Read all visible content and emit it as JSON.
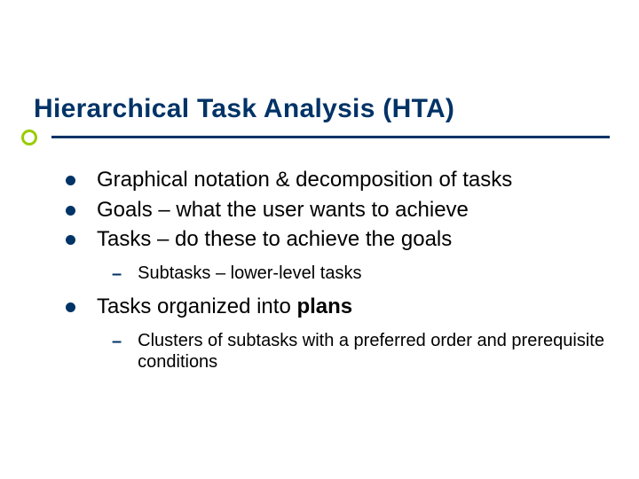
{
  "slide": {
    "title": "Hierarchical Task Analysis (HTA)",
    "title_color": "#003366",
    "title_fontsize": 30,
    "accent_circle_color": "#99cc00",
    "line_color": "#003366",
    "background_color": "#ffffff",
    "bullets": {
      "level1_bullet_color": "#003366",
      "level1_fontsize": 24,
      "level2_dash": "–",
      "level2_dash_color": "#003366",
      "level2_fontsize": 20,
      "items": [
        {
          "text": "Graphical notation & decomposition of tasks"
        },
        {
          "text": "Goals – what the user wants to achieve"
        },
        {
          "text": "Tasks – do these to achieve the goals",
          "children": [
            {
              "text": "Subtasks – lower-level tasks"
            }
          ]
        },
        {
          "text_pre": "Tasks organized into ",
          "text_bold": "plans",
          "children": [
            {
              "text": "Clusters of subtasks with a preferred order and prerequisite conditions"
            }
          ]
        }
      ]
    }
  }
}
